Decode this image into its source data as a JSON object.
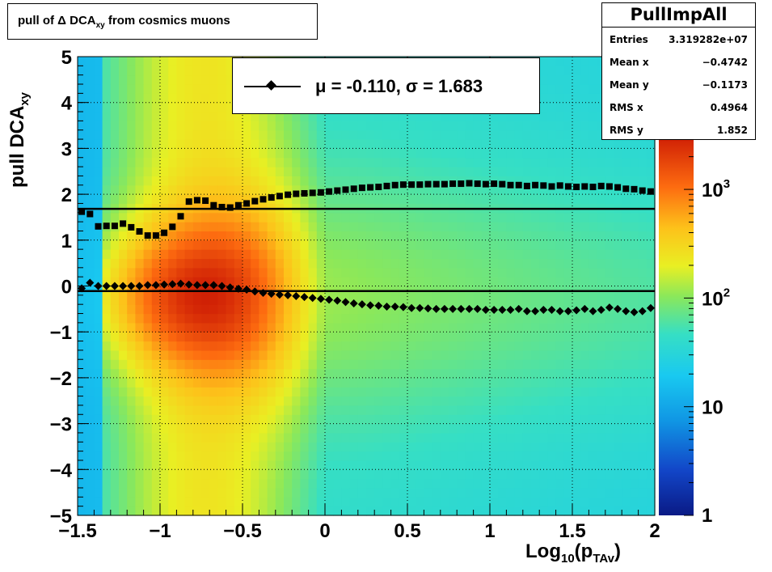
{
  "title_prefix": "pull of ",
  "title_delta": "Δ",
  "title_main": " DCA",
  "title_sub": "xy",
  "title_suffix": " from cosmics muons",
  "stats": {
    "name": "PullImpAll",
    "rows": [
      {
        "key": "Entries",
        "value": "3.319282e+07"
      },
      {
        "key": "Mean x",
        "value": "−0.4742"
      },
      {
        "key": "Mean y",
        "value": "−0.1173"
      },
      {
        "key": "RMS x",
        "value": "0.4964"
      },
      {
        "key": "RMS y",
        "value": "1.852"
      }
    ]
  },
  "legend": {
    "label": "μ = -0.110, σ =   1.683"
  },
  "xaxis_title": {
    "main": "Log",
    "sub1": "10",
    "mid": "(p",
    "sub2": "TAv",
    "end": ")"
  },
  "yaxis_title": {
    "main": "pull DCA",
    "sub": "xy"
  },
  "chart_data": {
    "type": "heatmap",
    "xlim": [
      -1.5,
      2
    ],
    "ylim": [
      -5,
      5
    ],
    "x_ticks": [
      -1.5,
      -1,
      -0.5,
      0,
      0.5,
      1,
      1.5,
      2
    ],
    "y_ticks": [
      -5,
      -4,
      -3,
      -2,
      -1,
      0,
      1,
      2,
      3,
      4,
      5
    ],
    "x_tick_labels": [
      "−1.5",
      "−1",
      "−0.5",
      "0",
      "0.5",
      "1",
      "1.5",
      "2"
    ],
    "y_tick_labels": [
      "−5",
      "−4",
      "−3",
      "−2",
      "−1",
      "0",
      "1",
      "2",
      "3",
      "4",
      "5"
    ],
    "z_scale": "log",
    "z_range": [
      1,
      3000
    ],
    "z_ticks": [
      1,
      10,
      100,
      1000
    ],
    "z_tick_labels": [
      {
        "base": "1",
        "exp": ""
      },
      {
        "base": "10",
        "exp": ""
      },
      {
        "base": "10",
        "exp": "2"
      },
      {
        "base": "10",
        "exp": "3"
      }
    ],
    "grid": true,
    "mean_fit": -0.11,
    "sigma_fit": 1.683,
    "profile": {
      "x": [
        -1.475,
        -1.425,
        -1.375,
        -1.325,
        -1.275,
        -1.225,
        -1.175,
        -1.125,
        -1.075,
        -1.025,
        -0.975,
        -0.925,
        -0.875,
        -0.825,
        -0.775,
        -0.725,
        -0.675,
        -0.625,
        -0.575,
        -0.525,
        -0.475,
        -0.425,
        -0.375,
        -0.325,
        -0.275,
        -0.225,
        -0.175,
        -0.125,
        -0.075,
        -0.025,
        0.025,
        0.075,
        0.125,
        0.175,
        0.225,
        0.275,
        0.325,
        0.375,
        0.425,
        0.475,
        0.525,
        0.575,
        0.625,
        0.675,
        0.725,
        0.775,
        0.825,
        0.875,
        0.925,
        0.975,
        1.025,
        1.075,
        1.125,
        1.175,
        1.225,
        1.275,
        1.325,
        1.375,
        1.425,
        1.475,
        1.525,
        1.575,
        1.625,
        1.675,
        1.725,
        1.775,
        1.825,
        1.875,
        1.925,
        1.975
      ],
      "mean": [
        -0.05,
        0.07,
        0.0,
        0.0,
        0.0,
        0.0,
        0.0,
        0.0,
        0.02,
        0.02,
        0.03,
        0.04,
        0.05,
        0.03,
        0.02,
        0.02,
        0.02,
        0.0,
        -0.03,
        -0.06,
        -0.08,
        -0.12,
        -0.15,
        -0.17,
        -0.19,
        -0.2,
        -0.22,
        -0.24,
        -0.26,
        -0.28,
        -0.3,
        -0.32,
        -0.35,
        -0.38,
        -0.4,
        -0.42,
        -0.43,
        -0.45,
        -0.45,
        -0.46,
        -0.48,
        -0.48,
        -0.49,
        -0.5,
        -0.5,
        -0.5,
        -0.5,
        -0.5,
        -0.5,
        -0.52,
        -0.52,
        -0.52,
        -0.52,
        -0.5,
        -0.55,
        -0.55,
        -0.52,
        -0.52,
        -0.55,
        -0.55,
        -0.53,
        -0.5,
        -0.55,
        -0.52,
        -0.47,
        -0.5,
        -0.55,
        -0.57,
        -0.55,
        -0.48
      ],
      "rms": [
        1.62,
        1.57,
        1.3,
        1.31,
        1.31,
        1.36,
        1.28,
        1.19,
        1.1,
        1.1,
        1.16,
        1.29,
        1.52,
        1.84,
        1.87,
        1.86,
        1.76,
        1.72,
        1.71,
        1.76,
        1.8,
        1.85,
        1.89,
        1.93,
        1.96,
        1.99,
        2.01,
        2.02,
        2.03,
        2.04,
        2.06,
        2.08,
        2.1,
        2.12,
        2.14,
        2.15,
        2.16,
        2.18,
        2.2,
        2.21,
        2.21,
        2.21,
        2.22,
        2.22,
        2.22,
        2.23,
        2.23,
        2.24,
        2.23,
        2.22,
        2.23,
        2.22,
        2.2,
        2.2,
        2.18,
        2.2,
        2.19,
        2.17,
        2.19,
        2.17,
        2.16,
        2.17,
        2.16,
        2.18,
        2.17,
        2.15,
        2.12,
        2.11,
        2.08,
        2.06
      ]
    }
  }
}
